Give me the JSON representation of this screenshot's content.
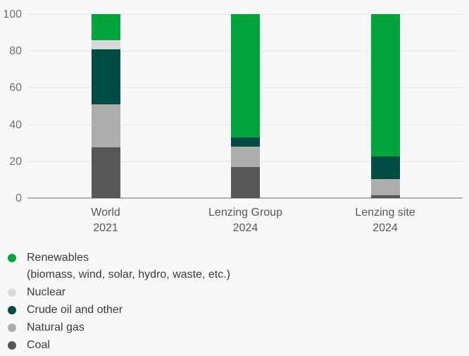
{
  "colors": {
    "background": "#f8f8f8",
    "gridline": "#e4e4e4",
    "axis_line": "#b1b1b1",
    "tick_label": "#6f6f6e",
    "category_label": "#575756",
    "legend_text": "#3a3a39"
  },
  "chart_data": {
    "type": "bar",
    "stacked": true,
    "title": "",
    "xlabel": "",
    "ylabel": "",
    "ylim": [
      0,
      100
    ],
    "yticks": [
      0,
      20,
      40,
      60,
      80,
      100
    ],
    "grid": true,
    "legend_position": "bottom-left",
    "categories": [
      {
        "line1": "World",
        "line2": "2021"
      },
      {
        "line1": "Lenzing Group",
        "line2": "2024"
      },
      {
        "line1": "Lenzing site",
        "line2": "2024"
      }
    ],
    "series": [
      {
        "name": "Renewables",
        "detail": "(biomass, wind, solar, hydro, waste, etc.)",
        "color": "#00a33c",
        "values": [
          14,
          67,
          77.5
        ]
      },
      {
        "name": "Nuclear",
        "color": "#d9d9d9",
        "values": [
          5,
          0,
          0
        ]
      },
      {
        "name": "Crude oil and other",
        "color": "#004b43",
        "values": [
          30,
          5,
          12
        ]
      },
      {
        "name": "Natural gas",
        "color": "#acacac",
        "values": [
          23.5,
          11,
          9
        ]
      },
      {
        "name": "Coal",
        "color": "#575756",
        "values": [
          27.5,
          17,
          1.5
        ]
      }
    ]
  },
  "legend": {
    "items": [
      {
        "label": "Renewables",
        "sublabel": "(biomass, wind, solar, hydro, waste, etc.)",
        "color": "#00a33c"
      },
      {
        "label": "Nuclear",
        "sublabel": "",
        "color": "#d9d9d9"
      },
      {
        "label": "Crude oil and other",
        "sublabel": "",
        "color": "#004b43"
      },
      {
        "label": "Natural gas",
        "sublabel": "",
        "color": "#acacac"
      },
      {
        "label": "Coal",
        "sublabel": "",
        "color": "#575756"
      }
    ]
  }
}
